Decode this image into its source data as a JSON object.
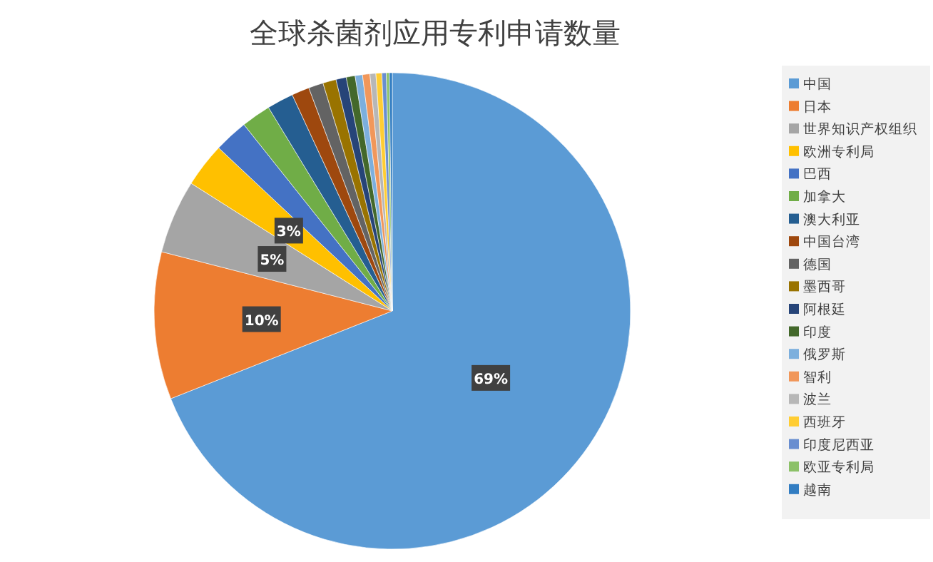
{
  "chart_data": {
    "type": "pie",
    "title": "全球杀菌剂应用专利申请数量",
    "categories": [
      "中国",
      "日本",
      "世界知识产权组织",
      "欧洲专利局",
      "巴西",
      "加拿大",
      "澳大利亚",
      "中国台湾",
      "德国",
      "墨西哥",
      "阿根廷",
      "印度",
      "俄罗斯",
      "智利",
      "波兰",
      "西班牙",
      "印度尼西亚",
      "欧亚专利局",
      "越南"
    ],
    "values": [
      69,
      10,
      5,
      3,
      2.3,
      2,
      1.8,
      1.2,
      1.0,
      0.9,
      0.7,
      0.6,
      0.5,
      0.5,
      0.4,
      0.4,
      0.3,
      0.2,
      0.2
    ],
    "colors": [
      "#5b9bd5",
      "#ed7d31",
      "#a5a5a5",
      "#ffc000",
      "#4472c4",
      "#70ad47",
      "#255e91",
      "#9e480e",
      "#636363",
      "#997300",
      "#264478",
      "#43682b",
      "#7cafdd",
      "#f1975a",
      "#b7b7b7",
      "#ffcd33",
      "#698ed0",
      "#8cc168",
      "#327dc2"
    ],
    "value_labels": [
      "69%",
      "10%",
      "5%",
      "3%",
      null,
      null,
      null,
      null,
      null,
      null,
      null,
      null,
      null,
      null,
      null,
      null,
      null,
      null,
      null
    ],
    "legend": "right"
  }
}
